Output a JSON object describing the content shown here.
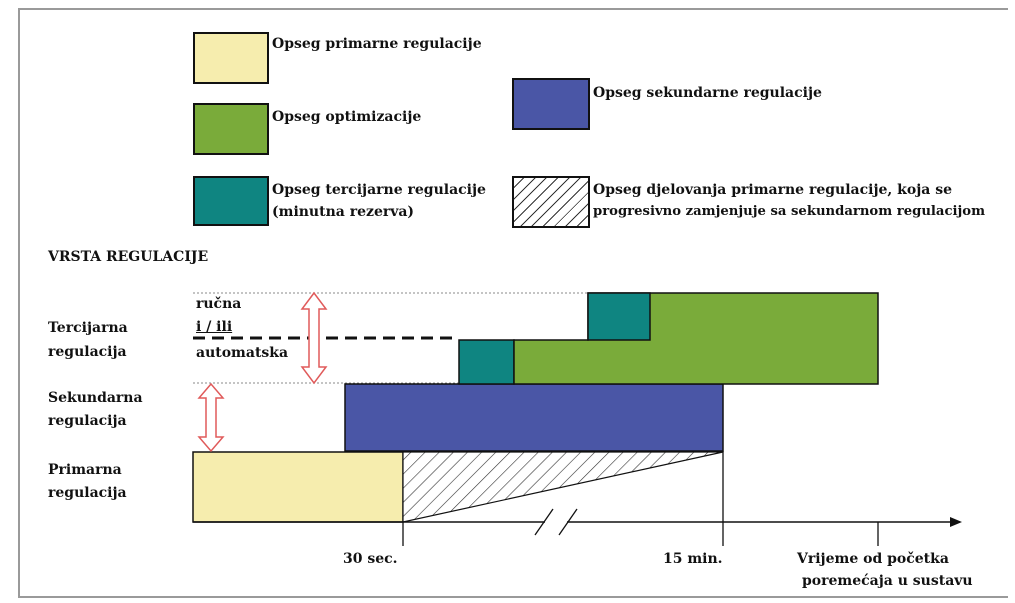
{
  "colors": {
    "primary": "#f6edae",
    "optimization": "#7aab3a",
    "secondary": "#4a56a6",
    "tertiary": "#0f8581",
    "arrow": "#e05a5a",
    "ink": "#111111"
  },
  "legend": {
    "primary": "Opseg primarne regulacije",
    "optimization": "Opseg optimizacije",
    "secondary": "Opseg sekundarne regulacije",
    "tertiary_line1": "Opseg tercijarne regulacije",
    "tertiary_line2": "(minutna rezerva)",
    "hatched_line1": "Opseg djelovanja primarne regulacije, koja se",
    "hatched_line2": "progresivno zamjenjuje sa sekundarnom regulacijom"
  },
  "section_title": "VRSTA REGULACIJE",
  "rows": {
    "tertiary_line1": "Tercijarna",
    "tertiary_line2": "regulacija",
    "secondary_line1": "Sekundarna",
    "secondary_line2": "regulacija",
    "primary_line1": "Primarna",
    "primary_line2": "regulacija"
  },
  "mode": {
    "manual": "ručna",
    "and_or": "i / ili",
    "automatic": "automatska"
  },
  "axis": {
    "tick_30s": "30 sec.",
    "tick_15min": "15 min.",
    "label_line1": "Vrijeme od početka",
    "label_line2": "poremećaja u sustavu"
  }
}
